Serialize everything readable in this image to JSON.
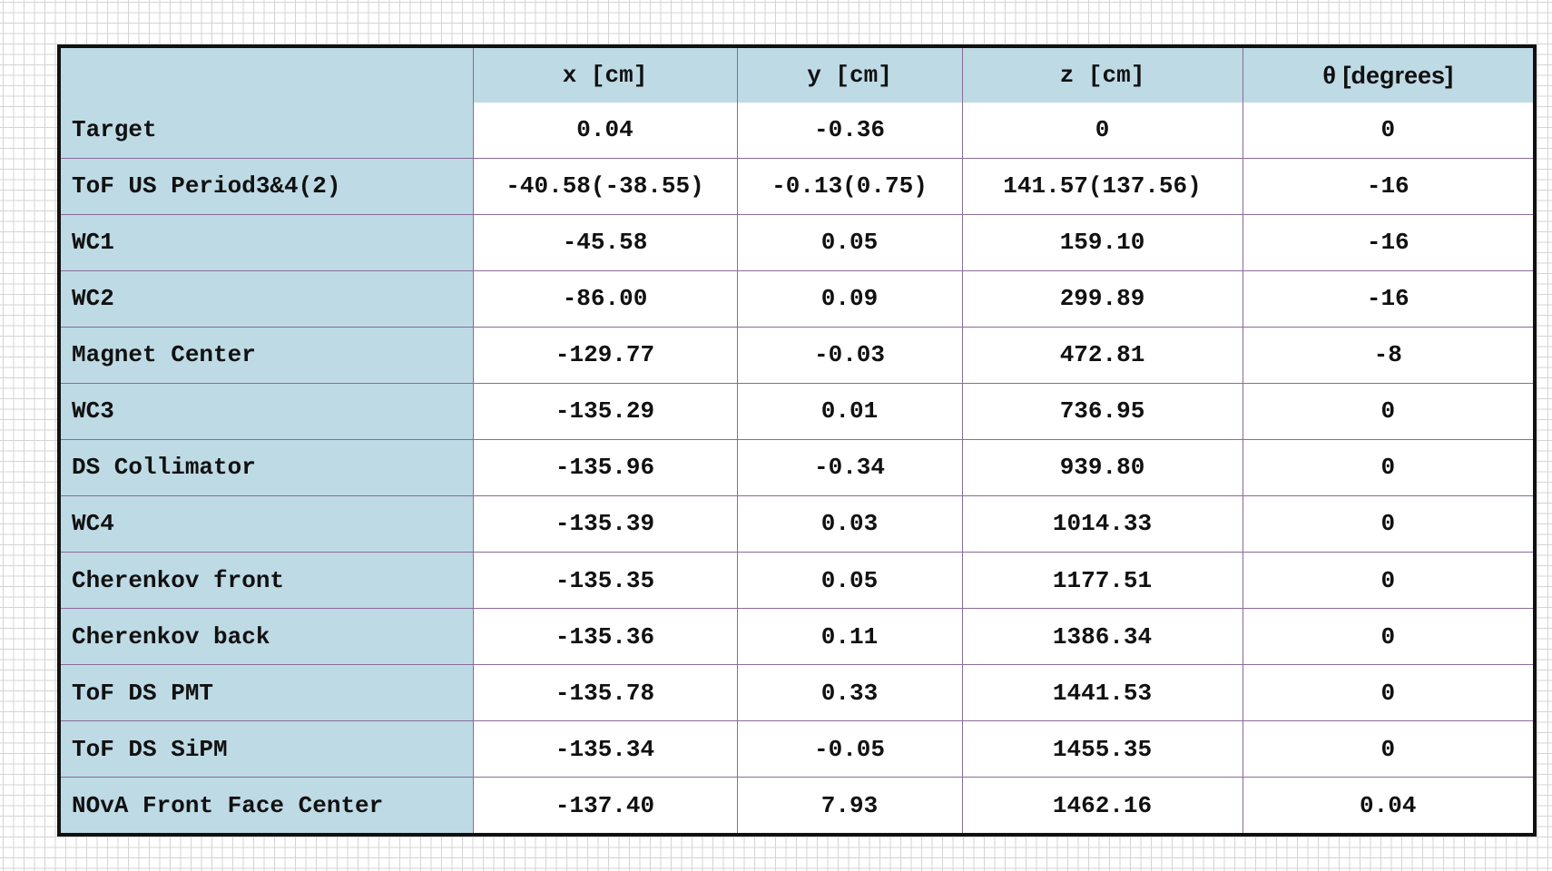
{
  "table": {
    "headers": [
      "",
      "x [cm]",
      "y [cm]",
      "z [cm]",
      "θ [degrees]"
    ],
    "rows": [
      {
        "label": "Target",
        "x": "0.04",
        "y": "-0.36",
        "z": "0",
        "theta": "0"
      },
      {
        "label": "ToF US Period3&4(2)",
        "x": "-40.58(-38.55)",
        "y": "-0.13(0.75)",
        "z": "141.57(137.56)",
        "theta": "-16"
      },
      {
        "label": "WC1",
        "x": "-45.58",
        "y": "0.05",
        "z": "159.10",
        "theta": "-16"
      },
      {
        "label": "WC2",
        "x": "-86.00",
        "y": "0.09",
        "z": "299.89",
        "theta": "-16"
      },
      {
        "label": "Magnet Center",
        "x": "-129.77",
        "y": "-0.03",
        "z": "472.81",
        "theta": "-8"
      },
      {
        "label": "WC3",
        "x": "-135.29",
        "y": "0.01",
        "z": "736.95",
        "theta": "0"
      },
      {
        "label": "DS Collimator",
        "x": "-135.96",
        "y": "-0.34",
        "z": "939.80",
        "theta": "0"
      },
      {
        "label": "WC4",
        "x": "-135.39",
        "y": "0.03",
        "z": "1014.33",
        "theta": "0"
      },
      {
        "label": "Cherenkov front",
        "x": "-135.35",
        "y": "0.05",
        "z": "1177.51",
        "theta": "0"
      },
      {
        "label": "Cherenkov back",
        "x": "-135.36",
        "y": "0.11",
        "z": "1386.34",
        "theta": "0"
      },
      {
        "label": "ToF DS PMT",
        "x": "-135.78",
        "y": "0.33",
        "z": "1441.53",
        "theta": "0"
      },
      {
        "label": "ToF DS SiPM",
        "x": "-135.34",
        "y": "-0.05",
        "z": "1455.35",
        "theta": "0"
      },
      {
        "label": "NOvA Front Face Center",
        "x": "-137.40",
        "y": "7.93",
        "z": "1462.16",
        "theta": "0.04"
      }
    ]
  },
  "colors": {
    "header_fill": "#bedae5",
    "cell_fill": "#ffffff",
    "cell_border": "#8a6a9a",
    "outer_border": "#111111",
    "grid_lines": "#d4d4d4"
  }
}
